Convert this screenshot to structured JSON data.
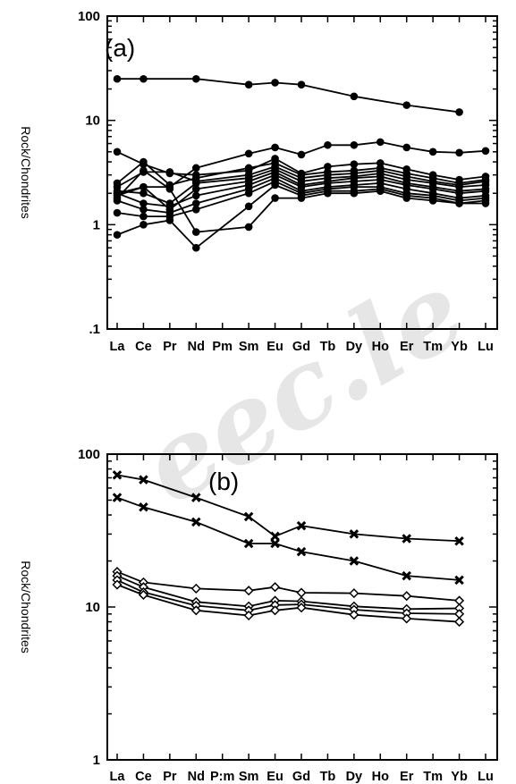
{
  "chart_data": [
    {
      "type": "line",
      "panel_label": "(a)",
      "ylabel": "Rock/Chondrites",
      "yscale": "log",
      "ylim": [
        0.1,
        100
      ],
      "yticks": [
        ".1",
        "1",
        "10",
        "100"
      ],
      "categories": [
        "La",
        "Ce",
        "Pr",
        "Nd",
        "Pm",
        "Sm",
        "Eu",
        "Gd",
        "Tb",
        "Dy",
        "Ho",
        "Er",
        "Tm",
        "Yb",
        "Lu"
      ],
      "marker": "dot",
      "series": [
        {
          "values": [
            25,
            25,
            null,
            25,
            null,
            22,
            23,
            22,
            null,
            17,
            null,
            14,
            null,
            12,
            null
          ]
        },
        {
          "values": [
            2.0,
            2.3,
            2.3,
            3.5,
            null,
            4.8,
            5.5,
            4.7,
            5.8,
            5.8,
            6.2,
            5.5,
            5.0,
            4.9,
            5.1
          ]
        },
        {
          "values": [
            5.0,
            3.8,
            3.1,
            3.0,
            null,
            3.3,
            4.3,
            3.1,
            3.6,
            3.8,
            3.9,
            3.4,
            3.0,
            2.7,
            2.9
          ]
        },
        {
          "values": [
            2.5,
            4.0,
            2.4,
            2.8,
            null,
            3.5,
            3.9,
            3.0,
            3.2,
            3.3,
            3.5,
            3.1,
            2.8,
            2.5,
            2.7
          ]
        },
        {
          "values": [
            2.3,
            3.2,
            3.2,
            2.6,
            null,
            3.0,
            3.6,
            2.8,
            3.0,
            3.1,
            3.3,
            2.9,
            2.6,
            2.4,
            2.6
          ]
        },
        {
          "values": [
            2.1,
            2.0,
            1.6,
            2.5,
            null,
            2.8,
            3.4,
            2.6,
            2.8,
            2.9,
            3.1,
            2.7,
            2.5,
            2.3,
            2.4
          ]
        },
        {
          "values": [
            1.9,
            2.3,
            1.4,
            2.2,
            null,
            2.6,
            3.2,
            2.4,
            2.6,
            2.8,
            2.9,
            2.5,
            2.3,
            2.1,
            2.2
          ]
        },
        {
          "values": [
            2.0,
            1.6,
            1.5,
            1.9,
            null,
            2.4,
            3.0,
            2.3,
            2.5,
            2.6,
            2.7,
            2.4,
            2.2,
            2.0,
            2.1
          ]
        },
        {
          "values": [
            1.7,
            1.4,
            1.3,
            1.6,
            null,
            2.2,
            2.8,
            2.1,
            2.3,
            2.4,
            2.5,
            2.2,
            2.0,
            1.8,
            1.9
          ]
        },
        {
          "values": [
            1.3,
            1.2,
            1.2,
            1.4,
            null,
            2.0,
            2.6,
            2.0,
            2.2,
            2.3,
            2.3,
            2.0,
            1.9,
            1.7,
            1.8
          ]
        },
        {
          "values": [
            0.8,
            1.0,
            1.1,
            0.6,
            null,
            1.5,
            2.4,
            1.9,
            2.1,
            2.1,
            2.2,
            1.9,
            1.8,
            1.6,
            1.7
          ]
        },
        {
          "values": [
            1.8,
            3.3,
            2.2,
            0.85,
            null,
            0.95,
            1.8,
            1.8,
            2.0,
            2.0,
            2.1,
            1.8,
            1.7,
            1.6,
            1.6
          ]
        }
      ]
    },
    {
      "type": "line",
      "panel_label": "(b)",
      "ylabel": "Rock/Chondrites",
      "yscale": "log",
      "ylim": [
        1,
        100
      ],
      "yticks": [
        "1",
        "10",
        "100"
      ],
      "categories": [
        "La",
        "Ce",
        "Pr",
        "Nd",
        "Pm",
        "Sm",
        "Eu",
        "Gd",
        "Tb",
        "Dy",
        "Ho",
        "Er",
        "Tm",
        "Yb",
        "Lu"
      ],
      "category_labels": [
        "La",
        "Ce",
        "Pr",
        "Nd",
        "P:m",
        "Sm",
        "Eu",
        "Gd",
        "Tb",
        "Dy",
        "Ho",
        "Er",
        "Tm",
        "Yb",
        "Lu"
      ],
      "series": [
        {
          "marker": "cross",
          "values": [
            73,
            68,
            null,
            52,
            null,
            39,
            29,
            34,
            null,
            30,
            null,
            28,
            null,
            27,
            null
          ]
        },
        {
          "marker": "cross",
          "values": [
            52,
            45,
            null,
            36,
            null,
            26,
            26,
            23,
            null,
            20,
            null,
            16,
            null,
            15,
            null
          ]
        },
        {
          "marker": "diamond",
          "values": [
            17,
            14.5,
            null,
            13.2,
            null,
            12.8,
            13.5,
            12.4,
            null,
            12.3,
            null,
            11.8,
            null,
            11.0,
            null
          ]
        },
        {
          "marker": "diamond",
          "values": [
            16,
            13.5,
            null,
            10.8,
            null,
            10.1,
            11.0,
            10.9,
            null,
            10.1,
            null,
            9.7,
            null,
            9.8,
            null
          ]
        },
        {
          "marker": "diamond",
          "values": [
            15,
            12.5,
            null,
            10.2,
            null,
            9.5,
            10.3,
            10.4,
            null,
            9.6,
            null,
            9.1,
            null,
            9.0,
            null
          ]
        },
        {
          "marker": "diamond",
          "values": [
            14,
            12.0,
            null,
            9.5,
            null,
            8.8,
            9.5,
            9.9,
            null,
            8.9,
            null,
            8.4,
            null,
            8.0,
            null
          ]
        }
      ]
    }
  ],
  "watermark": {
    "text": "eec.le"
  }
}
